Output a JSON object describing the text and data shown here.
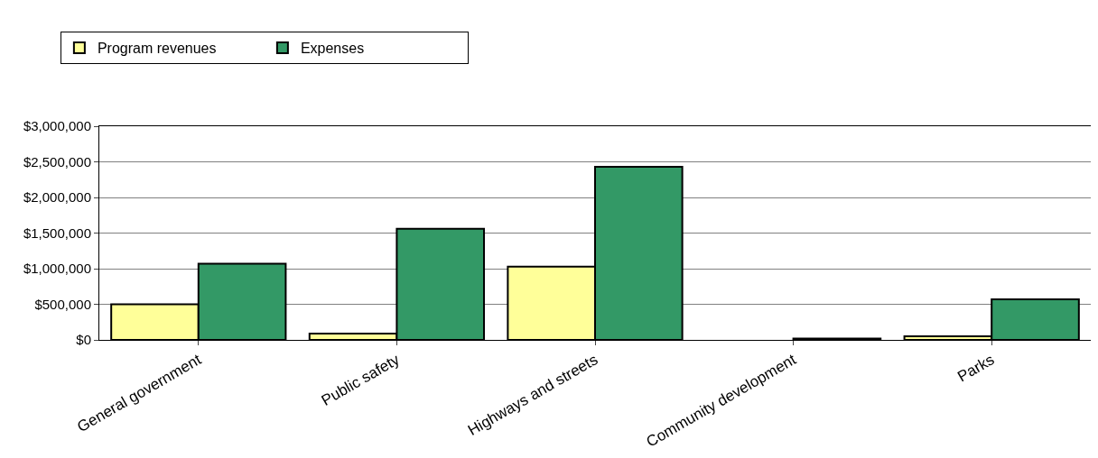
{
  "chart_data": {
    "type": "bar",
    "categories": [
      "General government",
      "Public safety",
      "Highways and streets",
      "Community development",
      "Parks"
    ],
    "series": [
      {
        "name": "Program revenues",
        "color": "#ffff99",
        "values": [
          500000,
          90000,
          1030000,
          null,
          50000
        ]
      },
      {
        "name": "Expenses",
        "color": "#339966",
        "values": [
          1070000,
          1560000,
          2430000,
          20000,
          570000
        ]
      }
    ],
    "ylim": [
      0,
      3000000
    ],
    "yticks": [
      {
        "value": 0,
        "label": "$0"
      },
      {
        "value": 500000,
        "label": "$500,000"
      },
      {
        "value": 1000000,
        "label": "$1,000,000"
      },
      {
        "value": 1500000,
        "label": "$1,500,000"
      },
      {
        "value": 2000000,
        "label": "$2,000,000"
      },
      {
        "value": 2500000,
        "label": "$2,500,000"
      },
      {
        "value": 3000000,
        "label": "$3,000,000"
      }
    ],
    "grid": "y",
    "legend": "top left"
  }
}
